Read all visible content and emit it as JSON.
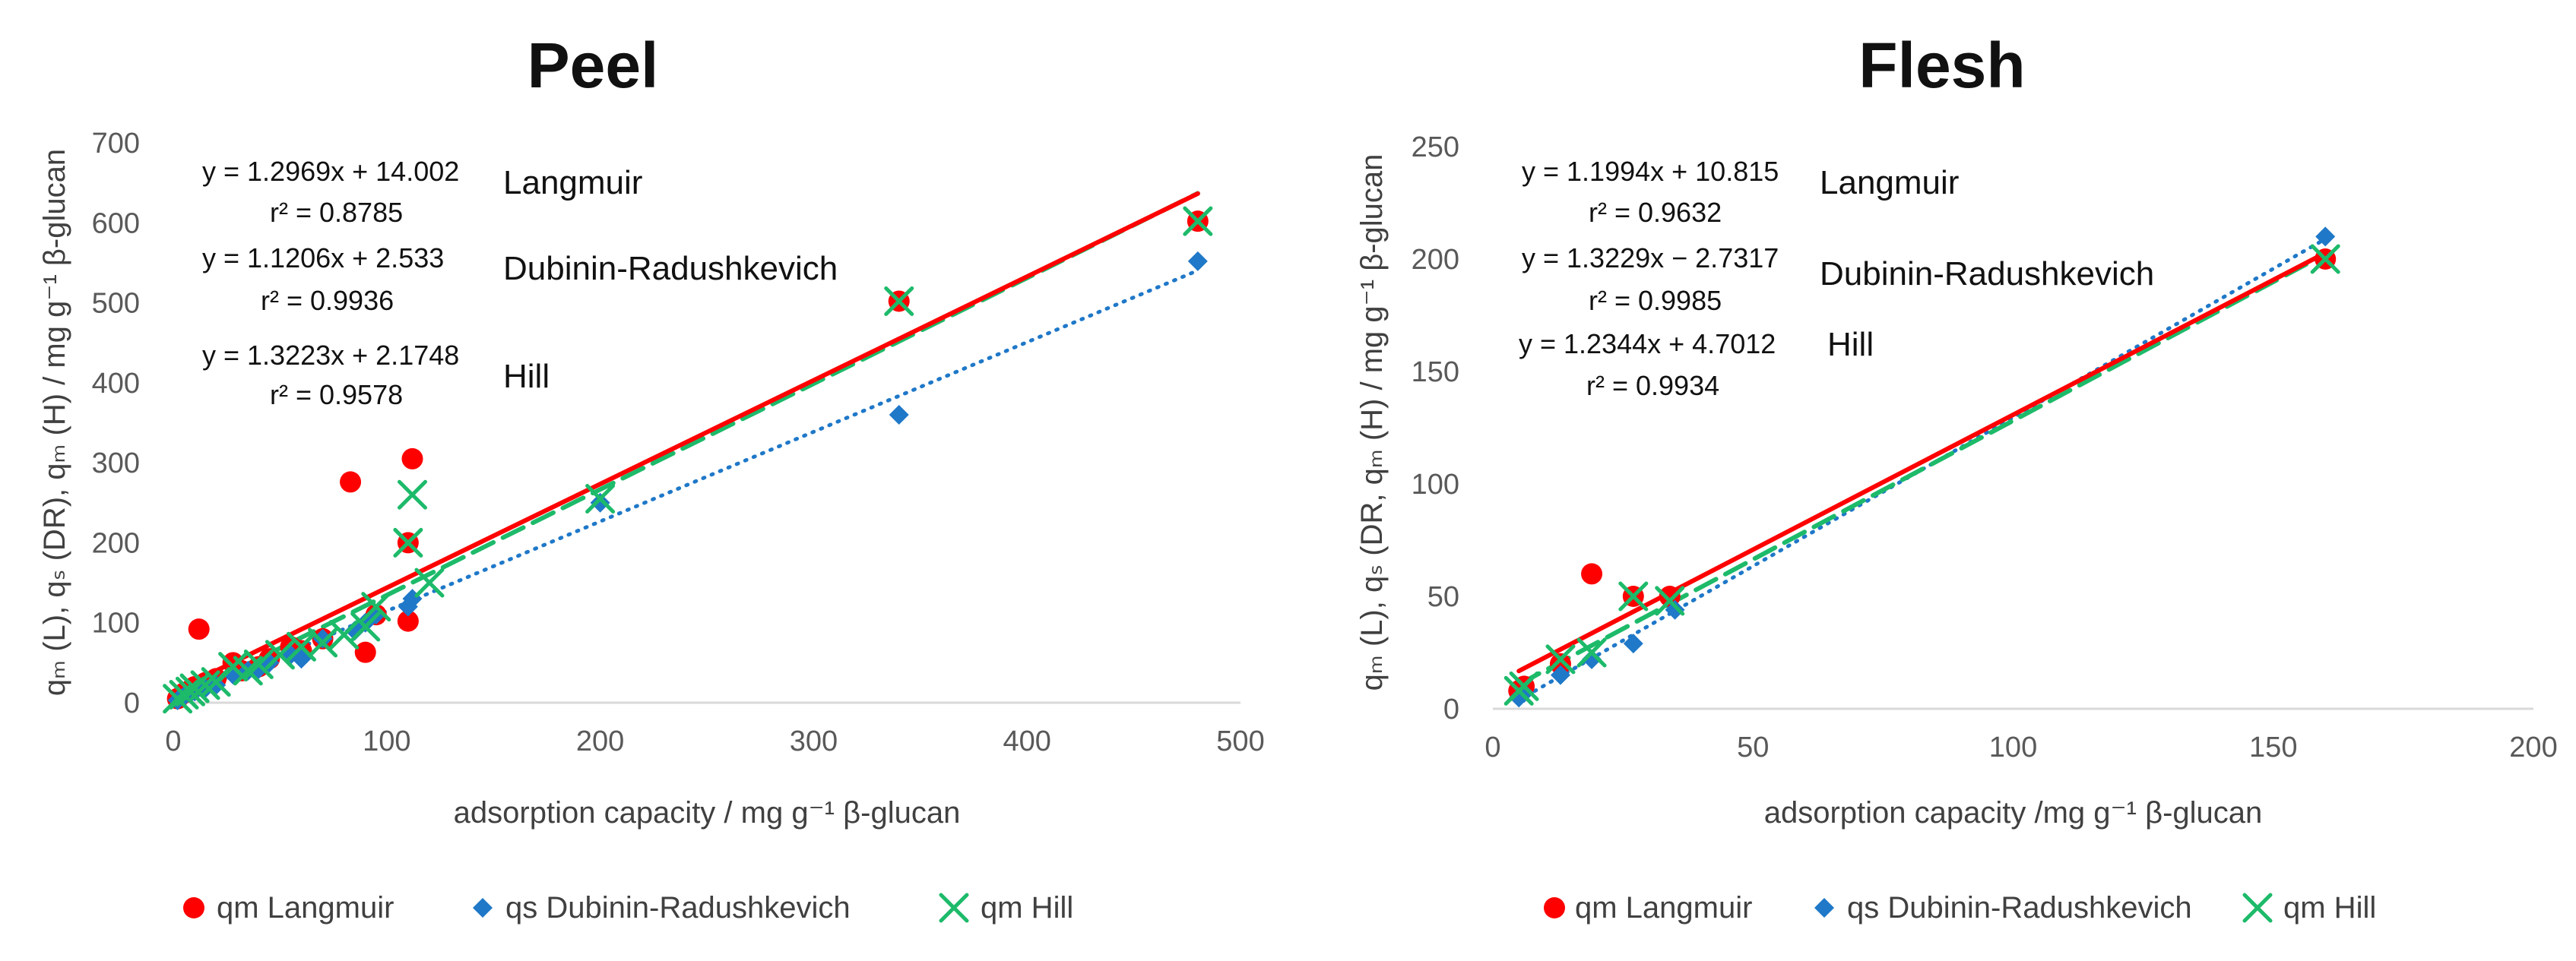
{
  "chart_data": [
    {
      "type": "scatter",
      "title": "Peel",
      "xlabel": "adsorption capacity / mg g⁻¹ β-glucan",
      "ylabel": "qₘ (L), qₛ (DR), qₘ (H) / mg g⁻¹ β-glucan",
      "xlim": [
        0,
        500
      ],
      "ylim": [
        0,
        700
      ],
      "xticks": [
        "0",
        "100",
        "200",
        "300",
        "400",
        "500"
      ],
      "yticks": [
        "0",
        "100",
        "200",
        "300",
        "400",
        "500",
        "600",
        "700"
      ],
      "series": [
        {
          "name": "qm Langmuir",
          "marker": "circle",
          "color": "#ff0000",
          "points": [
            [
              2,
              5
            ],
            [
              5,
              12
            ],
            [
              8,
              16
            ],
            [
              10,
              20
            ],
            [
              12,
              92
            ],
            [
              15,
              25
            ],
            [
              20,
              30
            ],
            [
              28,
              50
            ],
            [
              32,
              40
            ],
            [
              40,
              45
            ],
            [
              45,
              55
            ],
            [
              55,
              70
            ],
            [
              60,
              65
            ],
            [
              70,
              80
            ],
            [
              83,
              276
            ],
            [
              90,
              63
            ],
            [
              95,
              110
            ],
            [
              110,
              200
            ],
            [
              110,
              102
            ],
            [
              112,
              305
            ],
            [
              340,
              502
            ],
            [
              480,
              602
            ]
          ],
          "trend": {
            "slope": 1.2969,
            "intercept": 14.002,
            "x_range": [
              0,
              480
            ],
            "style": "solid",
            "width": 6
          }
        },
        {
          "name": "qs Dubinin-Radushkevich",
          "marker": "diamond",
          "color": "#1f78c8",
          "points": [
            [
              2,
              3
            ],
            [
              5,
              8
            ],
            [
              8,
              12
            ],
            [
              10,
              14
            ],
            [
              15,
              18
            ],
            [
              20,
              22
            ],
            [
              28,
              35
            ],
            [
              35,
              40
            ],
            [
              40,
              42
            ],
            [
              45,
              50
            ],
            [
              55,
              60
            ],
            [
              60,
              55
            ],
            [
              70,
              80
            ],
            [
              85,
              90
            ],
            [
              90,
              100
            ],
            [
              95,
              110
            ],
            [
              110,
              120
            ],
            [
              112,
              130
            ],
            [
              200,
              250
            ],
            [
              340,
              360
            ],
            [
              480,
              552
            ]
          ],
          "trend": {
            "slope": 1.1206,
            "intercept": 2.533,
            "x_range": [
              0,
              480
            ],
            "style": "dotted",
            "width": 5
          }
        },
        {
          "name": "qm Hill",
          "marker": "x",
          "color": "#1dba6a",
          "points": [
            [
              2,
              5
            ],
            [
              5,
              10
            ],
            [
              8,
              14
            ],
            [
              10,
              18
            ],
            [
              15,
              22
            ],
            [
              20,
              26
            ],
            [
              28,
              45
            ],
            [
              35,
              40
            ],
            [
              40,
              48
            ],
            [
              50,
              60
            ],
            [
              60,
              70
            ],
            [
              70,
              75
            ],
            [
              80,
              85
            ],
            [
              90,
              95
            ],
            [
              95,
              120
            ],
            [
              110,
              200
            ],
            [
              112,
              260
            ],
            [
              120,
              150
            ],
            [
              200,
              255
            ],
            [
              340,
              502
            ],
            [
              480,
              602
            ]
          ],
          "trend": {
            "slope": 1.3223,
            "intercept": 2.1748,
            "x_range": [
              0,
              480
            ],
            "style": "dashed",
            "width": 6
          }
        }
      ],
      "annotations": [
        {
          "equation": "y = 1.2969x + 14.002",
          "r2": "r² = 0.8785",
          "model": "Langmuir"
        },
        {
          "equation": "y = 1.1206x + 2.533",
          "r2": "r² = 0.9936",
          "model": "Dubinin-Radushkevich"
        },
        {
          "equation": "y = 1.3223x + 2.1748",
          "r2": "r² = 0.9578",
          "model": "Hill"
        }
      ],
      "legend": [
        "qm Langmuir",
        "qs Dubinin-Radushkevich",
        "qm Hill"
      ],
      "legend_position": "bottom",
      "grid": false
    },
    {
      "type": "scatter",
      "title": "Flesh",
      "xlabel": "adsorption capacity /mg g⁻¹ β-glucan",
      "ylabel": "qₘ (L), qₛ (DR, qₘ (H) / mg g⁻¹ β-glucan",
      "xlim": [
        0,
        200
      ],
      "ylim": [
        0,
        250
      ],
      "xticks": [
        "0",
        "50",
        "100",
        "150",
        "200"
      ],
      "yticks": [
        "0",
        "50",
        "100",
        "150",
        "200",
        "250"
      ],
      "series": [
        {
          "name": "qm Langmuir",
          "marker": "circle",
          "color": "#ff0000",
          "points": [
            [
              5,
              8
            ],
            [
              6,
              10
            ],
            [
              13,
              20
            ],
            [
              19,
              60
            ],
            [
              27,
              50
            ],
            [
              34,
              50
            ],
            [
              160,
              200
            ]
          ],
          "trend": {
            "slope": 1.1994,
            "intercept": 10.815,
            "x_range": [
              5,
              160
            ],
            "style": "solid",
            "width": 6
          }
        },
        {
          "name": "qs Dubinin-Radushkevich",
          "marker": "diamond",
          "color": "#1f78c8",
          "points": [
            [
              5,
              5
            ],
            [
              6,
              7
            ],
            [
              13,
              15
            ],
            [
              19,
              22
            ],
            [
              27,
              29
            ],
            [
              35,
              44
            ],
            [
              160,
              210
            ]
          ],
          "trend": {
            "slope": 1.3229,
            "intercept": -2.7317,
            "x_range": [
              5,
              160
            ],
            "style": "dotted",
            "width": 5
          }
        },
        {
          "name": "qm Hill",
          "marker": "x",
          "color": "#1dba6a",
          "points": [
            [
              5,
              8
            ],
            [
              6,
              10
            ],
            [
              13,
              22
            ],
            [
              19,
              25
            ],
            [
              27,
              50
            ],
            [
              34,
              48
            ],
            [
              160,
              200
            ]
          ],
          "trend": {
            "slope": 1.2344,
            "intercept": 4.7012,
            "x_range": [
              5,
              160
            ],
            "style": "dashed",
            "width": 6
          }
        }
      ],
      "annotations": [
        {
          "equation": "y = 1.1994x + 10.815",
          "r2": "r² = 0.9632",
          "model": "Langmuir"
        },
        {
          "equation": "y = 1.3229x − 2.7317",
          "r2": "r² = 0.9985",
          "model": "Dubinin-Radushkevich"
        },
        {
          "equation": "y = 1.2344x + 4.7012",
          "r2": "r² = 0.9934",
          "model": "Hill"
        }
      ],
      "legend": [
        "qm Langmuir",
        "qs Dubinin-Radushkevich",
        "qm Hill"
      ],
      "legend_position": "bottom",
      "grid": false
    }
  ]
}
